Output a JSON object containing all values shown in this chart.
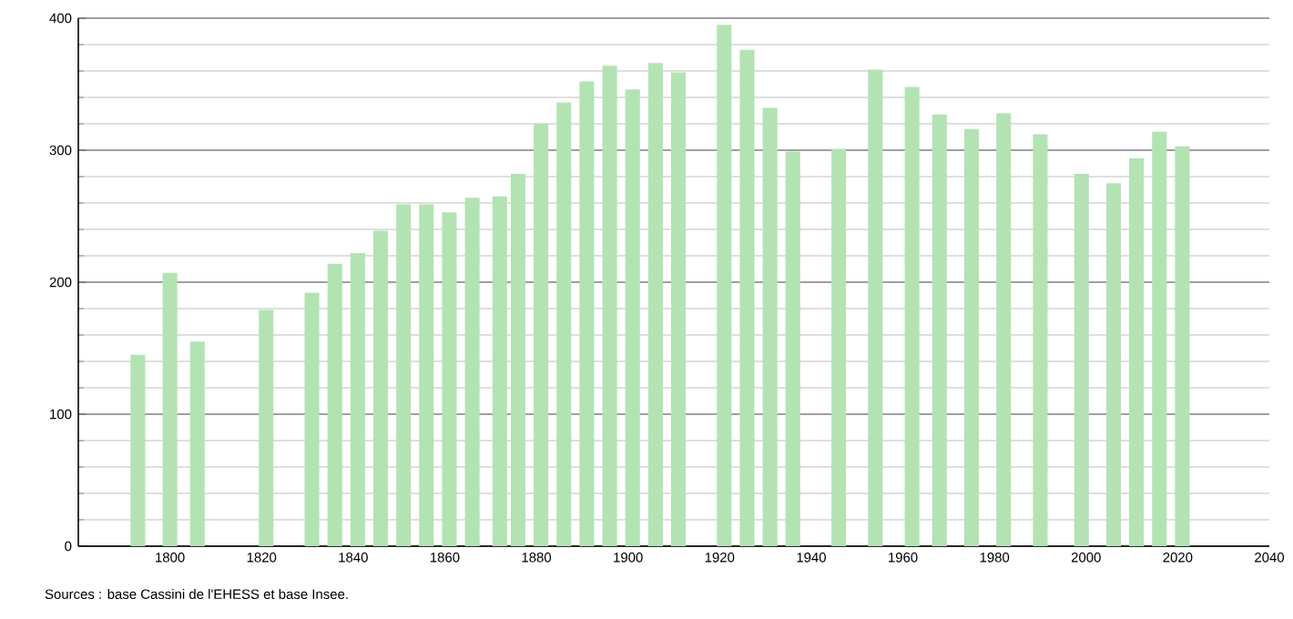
{
  "chart_data": {
    "type": "bar",
    "x": [
      1793,
      1800,
      1806,
      1821,
      1831,
      1836,
      1841,
      1846,
      1851,
      1856,
      1861,
      1866,
      1872,
      1876,
      1881,
      1886,
      1891,
      1896,
      1901,
      1906,
      1911,
      1921,
      1926,
      1931,
      1936,
      1946,
      1954,
      1962,
      1968,
      1975,
      1982,
      1990,
      1999,
      2006,
      2011,
      2016,
      2021
    ],
    "values": [
      145,
      207,
      155,
      179,
      192,
      214,
      222,
      239,
      259,
      259,
      253,
      264,
      265,
      282,
      320,
      336,
      352,
      364,
      346,
      366,
      359,
      395,
      376,
      332,
      299,
      301,
      361,
      348,
      327,
      316,
      328,
      312,
      282,
      275,
      294,
      314,
      303
    ],
    "color": "#b3e3b3",
    "xlim": [
      1780,
      2040
    ],
    "ylim": [
      0,
      400
    ],
    "xticks": [
      1800,
      1820,
      1840,
      1860,
      1880,
      1900,
      1920,
      1940,
      1960,
      1980,
      2000,
      2020,
      2040
    ],
    "yticks": [
      0,
      100,
      200,
      300,
      400
    ],
    "grid": "y",
    "annotations": [
      "Sources : base Cassini de l'EHESS et base Insee."
    ]
  }
}
